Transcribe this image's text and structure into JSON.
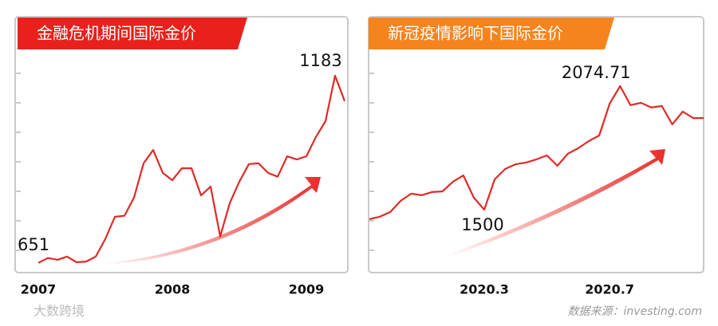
{
  "chart_data": [
    {
      "type": "line",
      "title": "金融危机期间国际金价",
      "categories": [
        "2007",
        null,
        null,
        null,
        null,
        null,
        null,
        null,
        null,
        null,
        null,
        null,
        null,
        null,
        "2008",
        null,
        null,
        null,
        null,
        null,
        null,
        null,
        null,
        null,
        null,
        null,
        null,
        null,
        "2009",
        null,
        null,
        null,
        null
      ],
      "series": [
        {
          "color": "#e02a26",
          "values": [
            651,
            665,
            660,
            669,
            653,
            655,
            669,
            719,
            782,
            785,
            837,
            934,
            972,
            907,
            886,
            920,
            920,
            843,
            868,
            726,
            821,
            882,
            932,
            934,
            907,
            896,
            954,
            945,
            954,
            1009,
            1054,
            1183,
            1111
          ]
        }
      ],
      "ylim": [
        628,
        1353
      ],
      "header_color": "#e8211d"
    },
    {
      "type": "line",
      "title": "新冠疫情影响下国际金价",
      "categories": [
        null,
        null,
        null,
        null,
        null,
        null,
        null,
        null,
        null,
        null,
        null,
        "2020.3",
        null,
        null,
        null,
        null,
        null,
        null,
        null,
        null,
        null,
        null,
        null,
        "2020.7",
        null,
        null,
        null,
        null,
        null,
        null,
        null,
        null,
        null
      ],
      "series": [
        {
          "color": "#e02a26",
          "values": [
            1456,
            1467,
            1489,
            1541,
            1574,
            1567,
            1582,
            1585,
            1630,
            1659,
            1556,
            1500,
            1641,
            1689,
            1711,
            1719,
            1734,
            1752,
            1704,
            1760,
            1786,
            1819,
            1845,
            1993,
            2074.71,
            1986,
            1997,
            1975,
            1982,
            1897,
            1956,
            1926,
            1926
          ]
        }
      ],
      "ylim": [
        1214.5,
        2401
      ],
      "header_color": "#f5841f"
    }
  ],
  "source": "数据来源：investing.com",
  "watermark": "大数跨境"
}
